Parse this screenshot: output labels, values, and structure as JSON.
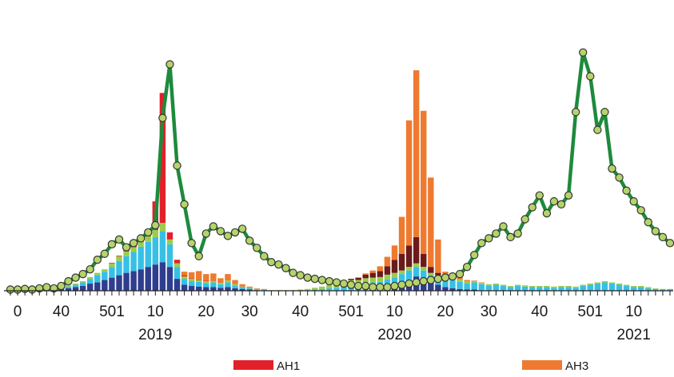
{
  "chart_data": {
    "type": "bar",
    "subtype": "stacked bar with overlaid line",
    "x_axis": {
      "tick_labels": [
        "0",
        "40",
        "501",
        "10",
        "20",
        "30",
        "40",
        "501",
        "10",
        "20",
        "30",
        "40",
        "501",
        "10"
      ],
      "tick_weeks": [
        1,
        7,
        14,
        20,
        27,
        33,
        40,
        47,
        53,
        60,
        66,
        73,
        80,
        86
      ],
      "years": [
        {
          "label": "2019",
          "center_week": 20
        },
        {
          "label": "2020",
          "center_week": 53
        },
        {
          "label": "2021",
          "center_week": 86
        }
      ]
    },
    "legend": [
      {
        "name": "AH1",
        "color": "#e3202a"
      },
      {
        "name": "AH3",
        "color": "#ee7a30"
      }
    ],
    "colors": {
      "AH1": "#e3202a",
      "AH3": "#ee7a30",
      "B_dark": "#2f3d8f",
      "B_cyan": "#37c0e6",
      "B_green": "#9ccc4a",
      "dark_red": "#6b1a1a",
      "line": "#1e8a3c",
      "marker_fill": "#b4d46a",
      "marker_edge": "#333333"
    },
    "series": [
      {
        "name": "AH1",
        "values": [
          0,
          0,
          0,
          0,
          0,
          0,
          0,
          0,
          0,
          0,
          0,
          0,
          0,
          0,
          1,
          1,
          2,
          4,
          6,
          9,
          48,
          218,
          12,
          6,
          2,
          1,
          1,
          1,
          0,
          0,
          0,
          0,
          0,
          0,
          0,
          0,
          0,
          0,
          0,
          0,
          0,
          0,
          0,
          0,
          0,
          0,
          0,
          0,
          0,
          0,
          0,
          0,
          0,
          0,
          0,
          0,
          0,
          0,
          0,
          0,
          0,
          0,
          0,
          0,
          0,
          0,
          0,
          0,
          0,
          0,
          0,
          0,
          0,
          0,
          0,
          0,
          0,
          0,
          0,
          0,
          0,
          0,
          0,
          0,
          0,
          0,
          0,
          0,
          0,
          0,
          0,
          0
        ]
      },
      {
        "name": "AH3",
        "values": [
          0,
          0,
          0,
          0,
          0,
          0,
          0,
          0,
          0,
          0,
          0,
          0,
          0,
          0,
          0,
          0,
          0,
          0,
          0,
          0,
          0,
          0,
          0,
          0,
          6,
          10,
          14,
          11,
          13,
          8,
          11,
          7,
          4,
          2,
          1,
          0,
          0,
          0,
          0,
          0,
          0,
          0,
          0,
          0,
          0,
          0,
          0,
          0,
          0,
          2,
          4,
          8,
          16,
          24,
          62,
          210,
          280,
          240,
          150,
          56,
          10,
          6,
          4,
          2,
          1,
          1,
          0,
          0,
          0,
          0,
          0,
          0,
          0,
          0,
          0,
          0,
          0,
          0,
          0,
          0,
          0,
          0,
          0,
          0,
          0,
          0,
          0,
          0,
          0,
          0,
          0,
          0
        ]
      },
      {
        "name": "B_dark",
        "values": [
          1,
          1,
          1,
          1,
          1,
          2,
          2,
          3,
          4,
          6,
          8,
          12,
          14,
          18,
          22,
          26,
          30,
          33,
          36,
          40,
          44,
          48,
          40,
          20,
          10,
          8,
          7,
          6,
          6,
          5,
          6,
          4,
          3,
          2,
          1,
          1,
          0,
          0,
          0,
          0,
          0,
          0,
          0,
          0,
          0,
          0,
          0,
          0,
          0,
          1,
          2,
          3,
          5,
          8,
          12,
          16,
          24,
          20,
          14,
          10,
          6,
          4,
          3,
          2,
          2,
          1,
          1,
          1,
          0,
          0,
          0,
          0,
          0,
          0,
          0,
          0,
          0,
          0,
          0,
          0,
          0,
          0,
          0,
          0,
          0,
          0,
          0,
          0,
          0,
          0,
          0,
          0
        ]
      },
      {
        "name": "B_cyan",
        "values": [
          0,
          0,
          0,
          0,
          0,
          1,
          1,
          2,
          3,
          4,
          6,
          8,
          12,
          14,
          18,
          24,
          28,
          32,
          38,
          42,
          46,
          52,
          38,
          20,
          10,
          8,
          8,
          7,
          8,
          6,
          8,
          5,
          3,
          2,
          1,
          1,
          0,
          0,
          0,
          0,
          0,
          1,
          2,
          3,
          4,
          5,
          6,
          6,
          8,
          10,
          12,
          12,
          14,
          14,
          16,
          18,
          16,
          14,
          12,
          12,
          10,
          14,
          12,
          10,
          12,
          10,
          8,
          9,
          8,
          6,
          8,
          7,
          6,
          6,
          6,
          5,
          6,
          6,
          5,
          8,
          10,
          12,
          14,
          12,
          10,
          8,
          6,
          6,
          4,
          3,
          2,
          2
        ]
      },
      {
        "name": "B_green",
        "values": [
          0,
          0,
          0,
          0,
          0,
          0,
          1,
          1,
          2,
          2,
          2,
          3,
          4,
          4,
          6,
          8,
          8,
          8,
          10,
          10,
          12,
          14,
          8,
          6,
          4,
          4,
          3,
          3,
          2,
          2,
          3,
          2,
          1,
          1,
          1,
          1,
          1,
          1,
          1,
          1,
          2,
          2,
          3,
          4,
          6,
          8,
          10,
          12,
          10,
          10,
          8,
          8,
          8,
          8,
          6,
          6,
          6,
          6,
          4,
          4,
          4,
          4,
          4,
          4,
          2,
          2,
          2,
          2,
          2,
          2,
          2,
          2,
          2,
          2,
          2,
          2,
          2,
          2,
          2,
          2,
          2,
          2,
          2,
          2,
          2,
          2,
          2,
          2,
          2,
          1,
          1,
          1
        ]
      },
      {
        "name": "dark_red",
        "values": [
          0,
          0,
          0,
          0,
          0,
          0,
          0,
          0,
          0,
          0,
          0,
          0,
          0,
          0,
          0,
          0,
          0,
          0,
          0,
          0,
          0,
          0,
          0,
          0,
          0,
          0,
          0,
          0,
          0,
          0,
          0,
          0,
          0,
          0,
          0,
          0,
          0,
          0,
          0,
          0,
          0,
          0,
          0,
          0,
          0,
          0,
          1,
          2,
          4,
          6,
          8,
          10,
          14,
          22,
          28,
          36,
          44,
          22,
          10,
          4,
          2,
          1,
          0,
          0,
          0,
          0,
          0,
          0,
          0,
          0,
          0,
          0,
          0,
          0,
          0,
          0,
          0,
          0,
          0,
          0,
          0,
          0,
          0,
          0,
          0,
          0,
          0,
          0,
          0,
          0,
          0,
          0
        ]
      }
    ],
    "line_series": {
      "name": "line",
      "values": [
        2,
        2,
        3,
        2,
        4,
        6,
        4,
        8,
        16,
        22,
        28,
        36,
        52,
        62,
        78,
        86,
        73,
        80,
        88,
        98,
        110,
        290,
        380,
        210,
        145,
        80,
        58,
        96,
        108,
        100,
        92,
        98,
        104,
        84,
        72,
        58,
        48,
        44,
        38,
        30,
        26,
        22,
        20,
        18,
        16,
        14,
        12,
        10,
        8,
        8,
        6,
        6,
        6,
        8,
        10,
        12,
        14,
        16,
        18,
        20,
        22,
        24,
        28,
        40,
        60,
        80,
        88,
        96,
        108,
        90,
        96,
        120,
        140,
        160,
        130,
        150,
        145,
        160,
        300,
        400,
        360,
        270,
        300,
        205,
        190,
        168,
        150,
        135,
        115,
        100,
        90,
        80
      ]
    },
    "line_series_note": "",
    "ylim": [
      0,
      480
    ],
    "grid": false,
    "legend_placement": "bottom"
  }
}
